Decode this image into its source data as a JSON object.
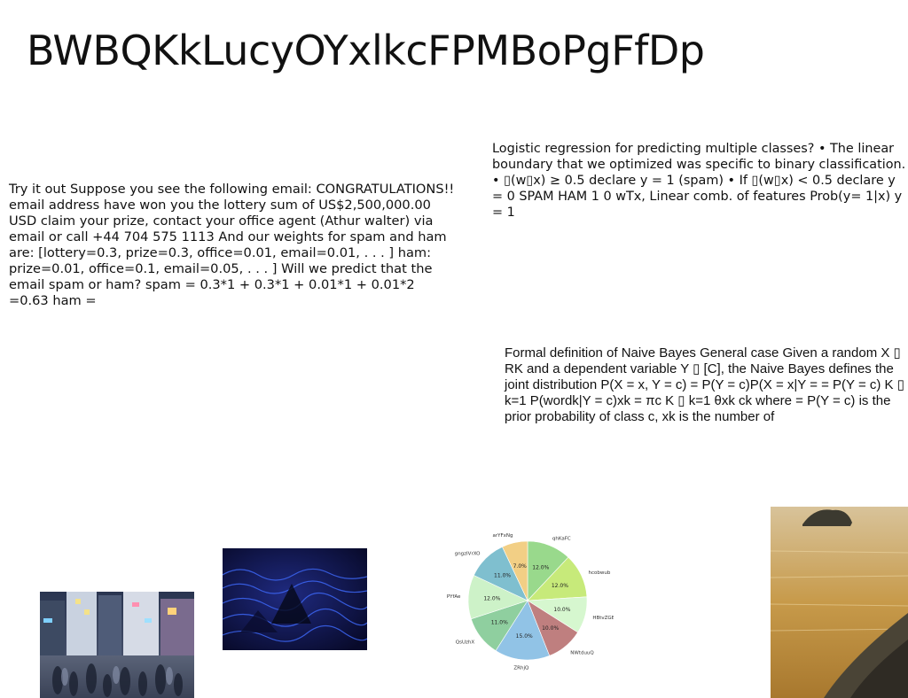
{
  "title": "BWBQKkLucyOYxlkcFPMBoPgFfDp",
  "paragraphs": {
    "email_example": "Try it out Suppose you see the following email: CONGRATULATIONS!! email address have won you the lottery sum of US$2,500,000.00 USD claim your prize, contact your office agent (Athur walter) via email or call +44 704 575 1113 And our weights for spam and ham are: [lottery=0.3, prize=0.3, office=0.01, email=0.01, . . . ] ham: prize=0.01, office=0.1, email=0.05, . . . ] Will we predict that the email spam or ham? spam = 0.3*1 + 0.3*1 + 0.01*1 + 0.01*2 =0.63 ham =",
    "logistic": "Logistic regression for predicting multiple classes? • The linear boundary that we optimized was specific to binary classification. • ▯(w▯x) ≥ 0.5 declare y = 1 (spam) • If ▯(w▯x) < 0.5 declare y = 0 SPAM HAM 1 0 wTx, Linear comb. of features Prob(y= 1|x) y = 1",
    "naive_bayes": "Formal definition of Naive Bayes General case Given a random X ▯ RK and a dependent variable Y ▯ [C], the Naive Bayes defines the joint distribution P(X = x, Y = c) = P(Y = c)P(X = x|Y = = P(Y = c) K ▯ k=1 P(wordk|Y = c)xk = πc K ▯ k=1 θxk ck where = P(Y = c) is the prior probability of class c, xk is the number of"
  },
  "chart_data": {
    "type": "pie",
    "title": "",
    "slices": [
      {
        "label": "qhKaFC",
        "value": 12.0,
        "pct_label": "12.0%",
        "color": "#99d98c"
      },
      {
        "label": "hcobwub",
        "value": 12.0,
        "pct_label": "12.0%",
        "color": "#c7ea7a"
      },
      {
        "label": "HBtvZGBLoR",
        "value": 10.0,
        "pct_label": "10.0%",
        "color": "#d6f7cf"
      },
      {
        "label": "NWtduuQ",
        "value": 10.0,
        "pct_label": "10.0%",
        "color": "#bf7f7f"
      },
      {
        "label": "ZRhjQ",
        "value": 15.0,
        "pct_label": "15.0%",
        "color": "#91c3e6"
      },
      {
        "label": "QsUzhX",
        "value": 11.0,
        "pct_label": "11.0%",
        "color": "#8fcf9f"
      },
      {
        "label": "PYfAe",
        "value": 12.0,
        "pct_label": "12.0%",
        "color": "#cdf2c8"
      },
      {
        "label": "gngzIVrXO",
        "value": 11.0,
        "pct_label": "11.0%",
        "color": "#7fbfcf"
      },
      {
        "label": "arYFxNg",
        "value": 7.0,
        "pct_label": "7.0%",
        "color": "#f2cf85"
      }
    ]
  }
}
